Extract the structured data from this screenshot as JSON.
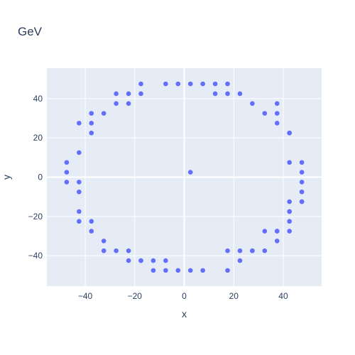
{
  "chart_data": {
    "type": "scatter",
    "title": "GeV",
    "xlabel": "x",
    "ylabel": "y",
    "xlim": [
      -55.5,
      55.5
    ],
    "ylim": [
      -55.5,
      55.5
    ],
    "xticks": [
      -40,
      -20,
      0,
      20,
      40
    ],
    "yticks": [
      -40,
      -20,
      0,
      20,
      40
    ],
    "xtick_labels": [
      "−40",
      "−20",
      "0",
      "20",
      "40"
    ],
    "ytick_labels": [
      "−40",
      "−20",
      "0",
      "20",
      "40"
    ],
    "grid": true,
    "zeroline": true,
    "marker_color": "#636efa",
    "plot_bg": "#e5ecf6",
    "grid_color": "#ffffff",
    "text_color": "#2a3f5f",
    "x": [
      -17.5,
      -7.5,
      -2.5,
      2.5,
      7.5,
      12.5,
      17.5,
      12.5,
      17.5,
      -17.5,
      -22.5,
      -27.5,
      -22.5,
      -27.5,
      -32.5,
      -37.5,
      -37.5,
      -42.5,
      -37.5,
      -42.5,
      -47.5,
      -47.5,
      2.5,
      -47.5,
      -42.5,
      -42.5,
      -42.5,
      -42.5,
      -37.5,
      -37.5,
      -32.5,
      -32.5,
      -27.5,
      -22.5,
      -22.5,
      -17.5,
      -17.5,
      -12.5,
      -12.5,
      -7.5,
      -7.5,
      -2.5,
      2.5,
      7.5,
      17.5,
      17.5,
      22.5,
      22.5,
      27.5,
      27.5,
      32.5,
      32.5,
      37.5,
      37.5,
      37.5,
      42.5,
      42.5,
      42.5,
      42.5,
      42.5,
      47.5,
      47.5,
      47.5,
      47.5,
      47.5,
      47.5,
      42.5,
      42.5,
      42.5,
      37.5,
      37.5,
      37.5,
      32.5,
      27.5,
      22.5
    ],
    "y": [
      47.5,
      47.5,
      47.5,
      47.5,
      47.5,
      47.5,
      47.5,
      42.5,
      42.5,
      42.5,
      42.5,
      42.5,
      37.5,
      37.5,
      32.5,
      32.5,
      27.5,
      27.5,
      22.5,
      12.5,
      7.5,
      2.5,
      2.5,
      -2.5,
      -2.5,
      -7.5,
      -17.5,
      -22.5,
      -22.5,
      -27.5,
      -32.5,
      -37.5,
      -37.5,
      -37.5,
      -42.5,
      -42.5,
      -42.5,
      -42.5,
      -47.5,
      -42.5,
      -47.5,
      -47.5,
      -47.5,
      -47.5,
      -47.5,
      -37.5,
      -37.5,
      -42.5,
      -37.5,
      -37.5,
      -27.5,
      -37.5,
      -27.5,
      -27.5,
      -32.5,
      -12.5,
      -17.5,
      -17.5,
      -22.5,
      -27.5,
      -12.5,
      -12.5,
      -7.5,
      -2.5,
      2.5,
      7.5,
      7.5,
      22.5,
      22.5,
      27.5,
      32.5,
      37.5,
      32.5,
      37.5,
      42.5
    ]
  }
}
